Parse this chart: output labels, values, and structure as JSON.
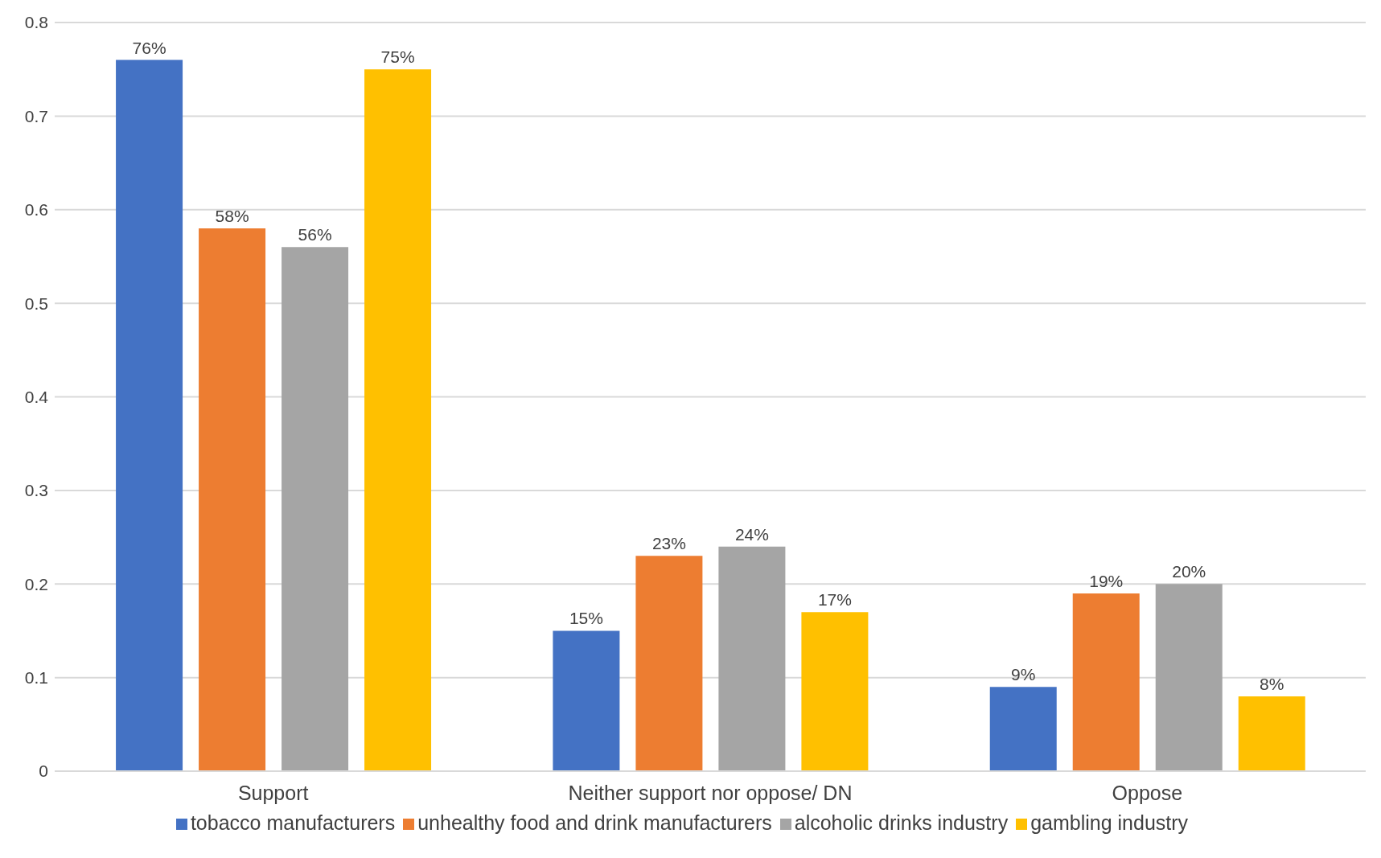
{
  "chart_data": {
    "type": "bar",
    "categories": [
      "Support",
      "Neither support nor oppose/ DN",
      "Oppose"
    ],
    "series": [
      {
        "name": "tobacco manufacturers",
        "color": "#4472c4",
        "values": [
          0.76,
          0.15,
          0.09
        ],
        "value_labels": [
          "76%",
          "15%",
          "9%"
        ]
      },
      {
        "name": "unhealthy food and drink manufacturers",
        "color": "#ed7d31",
        "values": [
          0.58,
          0.23,
          0.19
        ],
        "value_labels": [
          "58%",
          "23%",
          "19%"
        ]
      },
      {
        "name": "alcoholic drinks industry",
        "color": "#a5a5a5",
        "values": [
          0.56,
          0.24,
          0.2
        ],
        "value_labels": [
          "56%",
          "24%",
          "20%"
        ]
      },
      {
        "name": "gambling industry",
        "color": "#ffc000",
        "values": [
          0.75,
          0.17,
          0.08
        ],
        "value_labels": [
          "75%",
          "17%",
          "8%"
        ]
      }
    ],
    "ylim": [
      0,
      0.8
    ],
    "yticks": [
      0,
      0.1,
      0.2,
      0.3,
      0.4,
      0.5,
      0.6,
      0.7,
      0.8
    ],
    "grid": "y",
    "legend": "bottom"
  }
}
